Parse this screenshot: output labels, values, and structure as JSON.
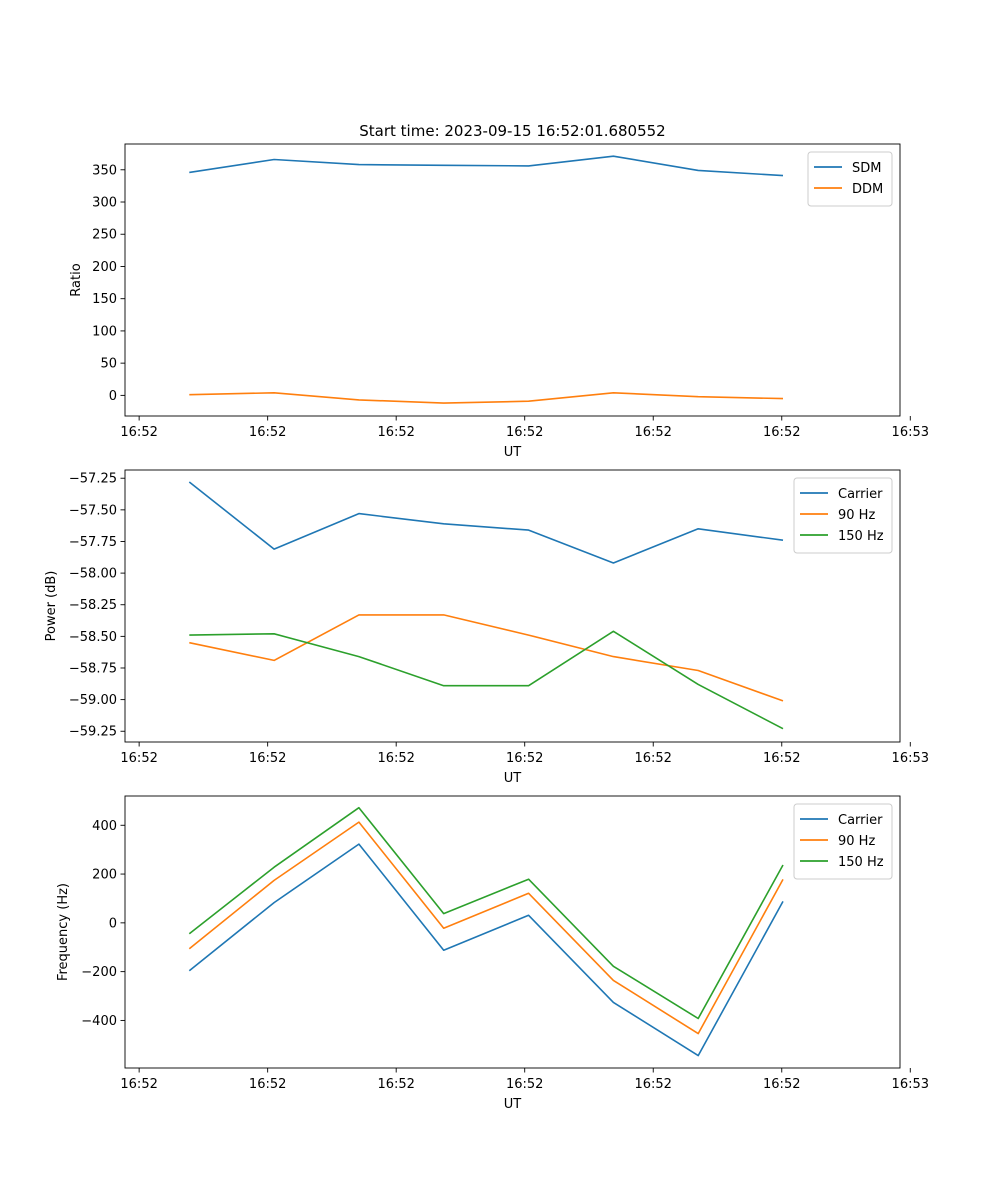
{
  "title": "Start time: 2023-09-15 16:52:01.680552",
  "chart_data": [
    {
      "type": "line",
      "title": "Start time: 2023-09-15 16:52:01.680552",
      "xlabel": "UT",
      "ylabel": "Ratio",
      "x": [
        0.5,
        1.16,
        1.82,
        2.48,
        3.14,
        3.8,
        4.46,
        5.12
      ],
      "xlim": [
        0,
        6.03
      ],
      "xticks": [
        0.11,
        1.11,
        2.11,
        3.11,
        4.11,
        5.11,
        6.11
      ],
      "xtick_labels": [
        "16:52",
        "16:52",
        "16:52",
        "16:52",
        "16:52",
        "16:52",
        "16:53"
      ],
      "ylim": [
        -32,
        390
      ],
      "yticks": [
        0,
        50,
        100,
        150,
        200,
        250,
        300,
        350
      ],
      "ytick_labels": [
        "0",
        "50",
        "100",
        "150",
        "200",
        "250",
        "300",
        "350"
      ],
      "legend": "top-right",
      "series": [
        {
          "name": "SDM",
          "color": "#1f77b4",
          "values": [
            346,
            366,
            358,
            357,
            356,
            371,
            349,
            341
          ]
        },
        {
          "name": "DDM",
          "color": "#ff7f0e",
          "values": [
            1,
            4,
            -7,
            -12,
            -9,
            4,
            -2,
            -5
          ]
        }
      ]
    },
    {
      "type": "line",
      "title": "",
      "xlabel": "UT",
      "ylabel": "Power (dB)",
      "x": [
        0.5,
        1.16,
        1.82,
        2.48,
        3.14,
        3.8,
        4.46,
        5.12
      ],
      "xlim": [
        0,
        6.03
      ],
      "xticks": [
        0.11,
        1.11,
        2.11,
        3.11,
        4.11,
        5.11,
        6.11
      ],
      "xtick_labels": [
        "16:52",
        "16:52",
        "16:52",
        "16:52",
        "16:52",
        "16:52",
        "16:53"
      ],
      "ylim": [
        -59.335,
        -57.185
      ],
      "yticks": [
        -59.25,
        -59.0,
        -58.75,
        -58.5,
        -58.25,
        -58.0,
        -57.75,
        -57.5,
        -57.25
      ],
      "ytick_labels": [
        "−59.25",
        "−59.00",
        "−58.75",
        "−58.50",
        "−58.25",
        "−58.00",
        "−57.75",
        "−57.50",
        "−57.25"
      ],
      "legend": "top-right",
      "series": [
        {
          "name": "Carrier",
          "color": "#1f77b4",
          "values": [
            -57.28,
            -57.81,
            -57.53,
            -57.61,
            -57.66,
            -57.92,
            -57.65,
            -57.74
          ]
        },
        {
          "name": "90 Hz",
          "color": "#ff7f0e",
          "values": [
            -58.55,
            -58.69,
            -58.33,
            -58.33,
            -58.49,
            -58.66,
            -58.77,
            -59.01
          ]
        },
        {
          "name": "150 Hz",
          "color": "#2ca02c",
          "values": [
            -58.49,
            -58.48,
            -58.66,
            -58.89,
            -58.89,
            -58.46,
            -58.88,
            -59.23
          ]
        }
      ]
    },
    {
      "type": "line",
      "title": "",
      "xlabel": "UT",
      "ylabel": "Frequency (Hz)",
      "x": [
        0.5,
        1.16,
        1.82,
        2.48,
        3.14,
        3.8,
        4.46,
        5.12
      ],
      "xlim": [
        0,
        6.03
      ],
      "xticks": [
        0.11,
        1.11,
        2.11,
        3.11,
        4.11,
        5.11,
        6.11
      ],
      "xtick_labels": [
        "16:52",
        "16:52",
        "16:52",
        "16:52",
        "16:52",
        "16:52",
        "16:53"
      ],
      "ylim": [
        -595,
        520
      ],
      "yticks": [
        -400,
        -200,
        0,
        200,
        400
      ],
      "ytick_labels": [
        "−400",
        "−200",
        "0",
        "200",
        "400"
      ],
      "legend": "top-right",
      "series": [
        {
          "name": "Carrier",
          "color": "#1f77b4",
          "values": [
            -196,
            83,
            323,
            -112,
            31,
            -326,
            -544,
            88
          ]
        },
        {
          "name": "90 Hz",
          "color": "#ff7f0e",
          "values": [
            -106,
            174,
            413,
            -22,
            121,
            -236,
            -454,
            178
          ]
        },
        {
          "name": "150 Hz",
          "color": "#2ca02c",
          "values": [
            -45,
            228,
            472,
            38,
            179,
            -178,
            -392,
            237
          ]
        }
      ]
    }
  ]
}
